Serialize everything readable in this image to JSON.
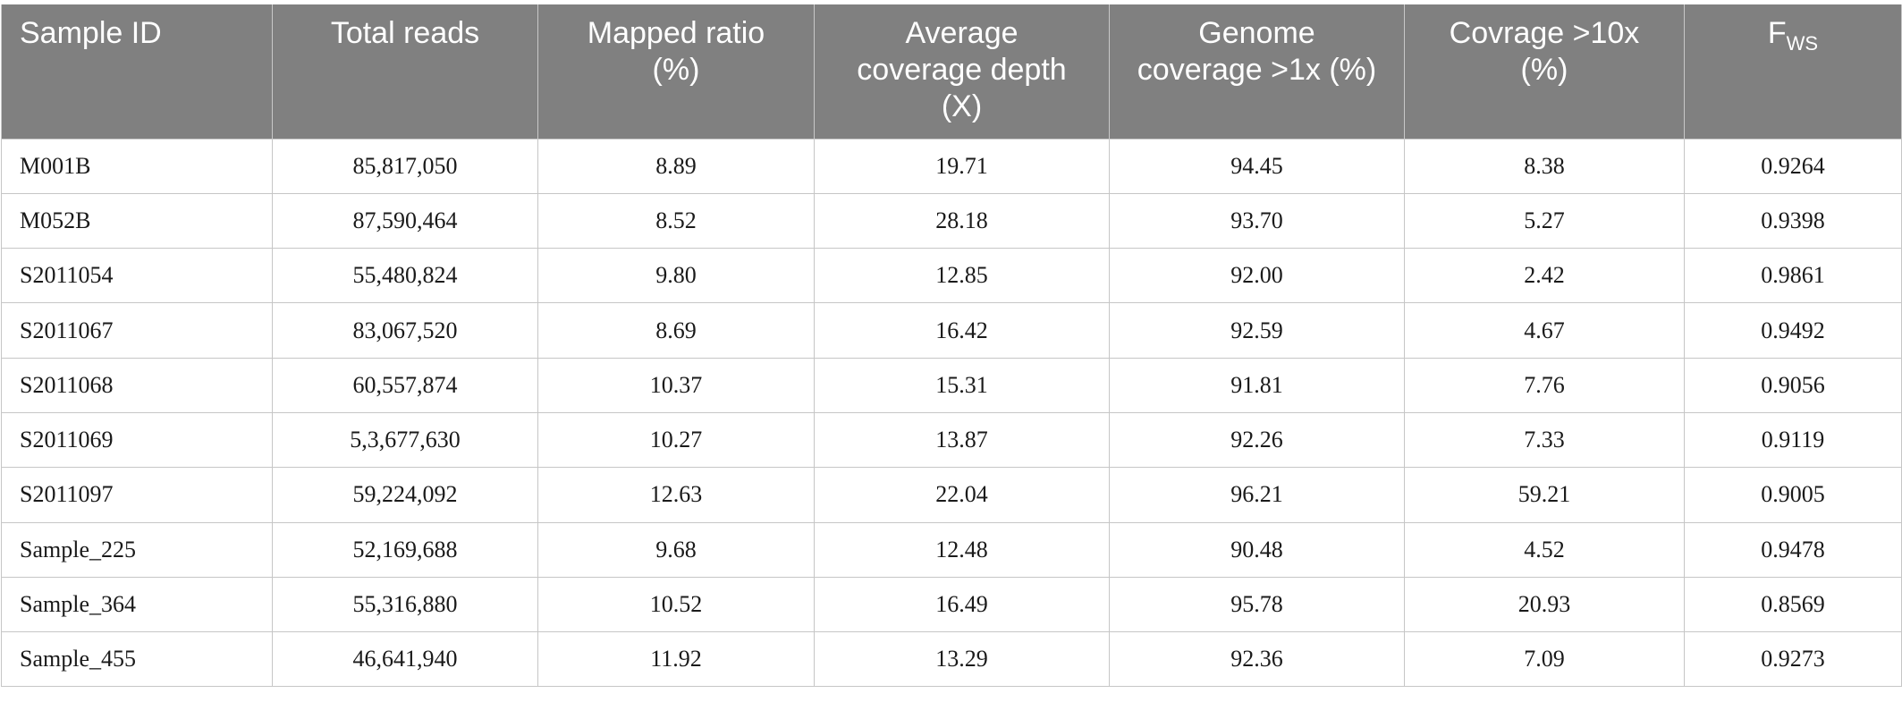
{
  "table": {
    "headers": [
      {
        "lines": [
          "Sample ID"
        ]
      },
      {
        "lines": [
          "Total reads"
        ]
      },
      {
        "lines": [
          "Mapped ratio",
          "(%)"
        ]
      },
      {
        "lines": [
          "Average",
          "coverage depth",
          "(X)"
        ]
      },
      {
        "lines": [
          "Genome",
          "coverage >1x (%)"
        ]
      },
      {
        "lines": [
          "Covrage >10x",
          "(%)"
        ]
      },
      {
        "main": "F",
        "sub": "WS"
      }
    ],
    "rows": [
      [
        "M001B",
        "85,817,050",
        "8.89",
        "19.71",
        "94.45",
        "8.38",
        "0.9264"
      ],
      [
        "M052B",
        "87,590,464",
        "8.52",
        "28.18",
        "93.70",
        "5.27",
        "0.9398"
      ],
      [
        "S2011054",
        "55,480,824",
        "9.80",
        "12.85",
        "92.00",
        "2.42",
        "0.9861"
      ],
      [
        "S2011067",
        "83,067,520",
        "8.69",
        "16.42",
        "92.59",
        "4.67",
        "0.9492"
      ],
      [
        "S2011068",
        "60,557,874",
        "10.37",
        "15.31",
        "91.81",
        "7.76",
        "0.9056"
      ],
      [
        "S2011069",
        "5,3,677,630",
        "10.27",
        "13.87",
        "92.26",
        "7.33",
        "0.9119"
      ],
      [
        "S2011097",
        "59,224,092",
        "12.63",
        "22.04",
        "96.21",
        "59.21",
        "0.9005"
      ],
      [
        "Sample_225",
        "52,169,688",
        "9.68",
        "12.48",
        "90.48",
        "4.52",
        "0.9478"
      ],
      [
        "Sample_364",
        "55,316,880",
        "10.52",
        "16.49",
        "95.78",
        "20.93",
        "0.8569"
      ],
      [
        "Sample_455",
        "46,641,940",
        "11.92",
        "13.29",
        "92.36",
        "7.09",
        "0.9273"
      ]
    ]
  }
}
